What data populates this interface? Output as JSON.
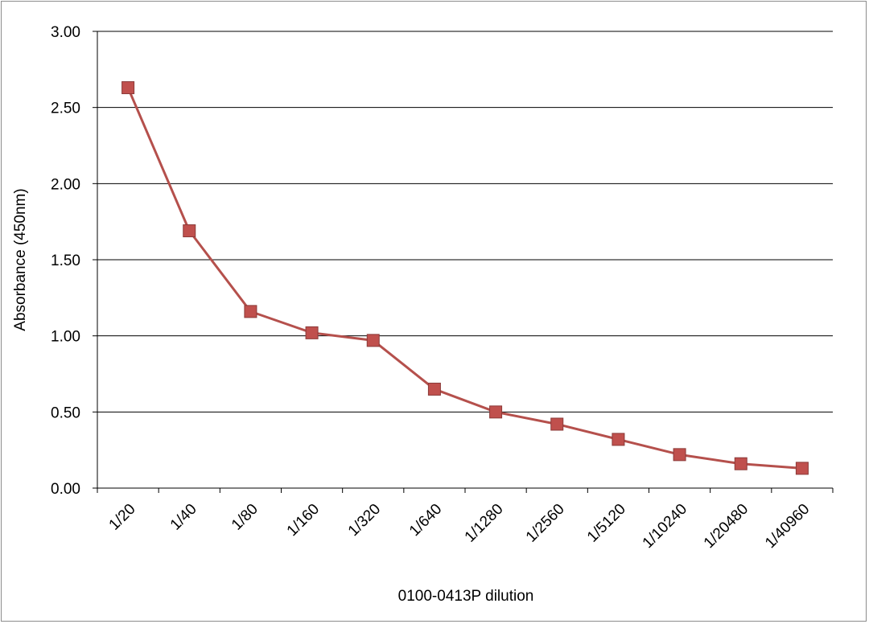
{
  "chart_data": {
    "type": "line",
    "title": "",
    "xlabel": "0100-0413P dilution",
    "ylabel": "Absorbance (450nm)",
    "categories": [
      "1/20",
      "1/40",
      "1/80",
      "1/160",
      "1/320",
      "1/640",
      "1/1280",
      "1/2560",
      "1/5120",
      "1/10240",
      "1/20480",
      "1/40960"
    ],
    "series": [
      {
        "values": [
          2.63,
          1.69,
          1.16,
          1.02,
          0.97,
          0.65,
          0.5,
          0.42,
          0.32,
          0.22,
          0.16,
          0.13
        ]
      }
    ],
    "ylim": [
      0,
      3
    ],
    "yticks": [
      "0.00",
      "0.50",
      "1.00",
      "1.50",
      "2.00",
      "2.50",
      "3.00"
    ],
    "grid": true,
    "legend": "none",
    "colors": {
      "line": "#b5504c",
      "marker_fill": "#c0504d",
      "marker_edge": "#8b3a38",
      "grid": "#000000"
    }
  }
}
